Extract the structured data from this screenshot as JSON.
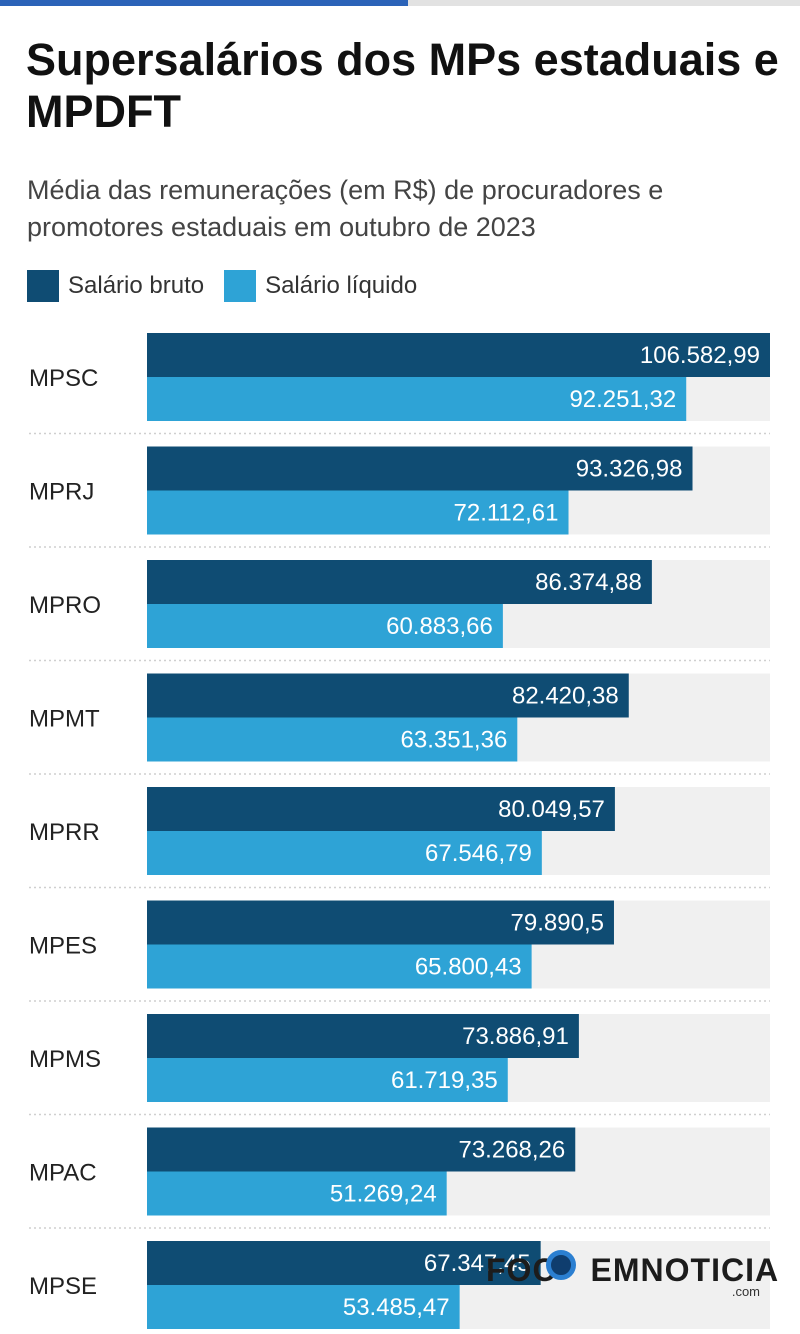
{
  "chart_data": {
    "type": "bar",
    "orientation": "horizontal",
    "title": "Supersalários dos MPs estaduais e MPDFT",
    "subtitle": "Média das remunerações (em R$) de procuradores e promotores estaduais em outubro de 2023",
    "categories": [
      "MPSC",
      "MPRJ",
      "MPRO",
      "MPMT",
      "MPRR",
      "MPES",
      "MPMS",
      "MPAC",
      "MPSE"
    ],
    "series": [
      {
        "name": "Salário bruto",
        "color": "#0f4c73",
        "values": [
          106582.99,
          93326.98,
          86374.88,
          82420.38,
          80049.57,
          79890.5,
          73886.91,
          73268.26,
          67347.45
        ],
        "labels": [
          "106.582,99",
          "93.326,98",
          "86.374,88",
          "82.420,38",
          "80.049,57",
          "79.890,5",
          "73.886,91",
          "73.268,26",
          "67.347,45"
        ]
      },
      {
        "name": "Salário líquido",
        "color": "#2ea3d6",
        "values": [
          92251.32,
          72112.61,
          60883.66,
          63351.36,
          67546.79,
          65800.43,
          61719.35,
          51269.24,
          53485.47
        ],
        "labels": [
          "92.251,32",
          "72.112,61",
          "60.883,66",
          "63.351,36",
          "67.546,79",
          "65.800,43",
          "61.719,35",
          "51.269,24",
          "53.485,47"
        ]
      }
    ],
    "xlim": [
      0,
      106582.99
    ],
    "legend": "top-left",
    "grid": false
  },
  "progress": 0.51,
  "colors": {
    "track": "#f0f0f0",
    "divider": "#cfcfcf",
    "accent": "#2b63b8"
  },
  "watermark": {
    "text_left": "FOC",
    "text_right": "EMNOTICIA",
    "suffix": ".com"
  }
}
